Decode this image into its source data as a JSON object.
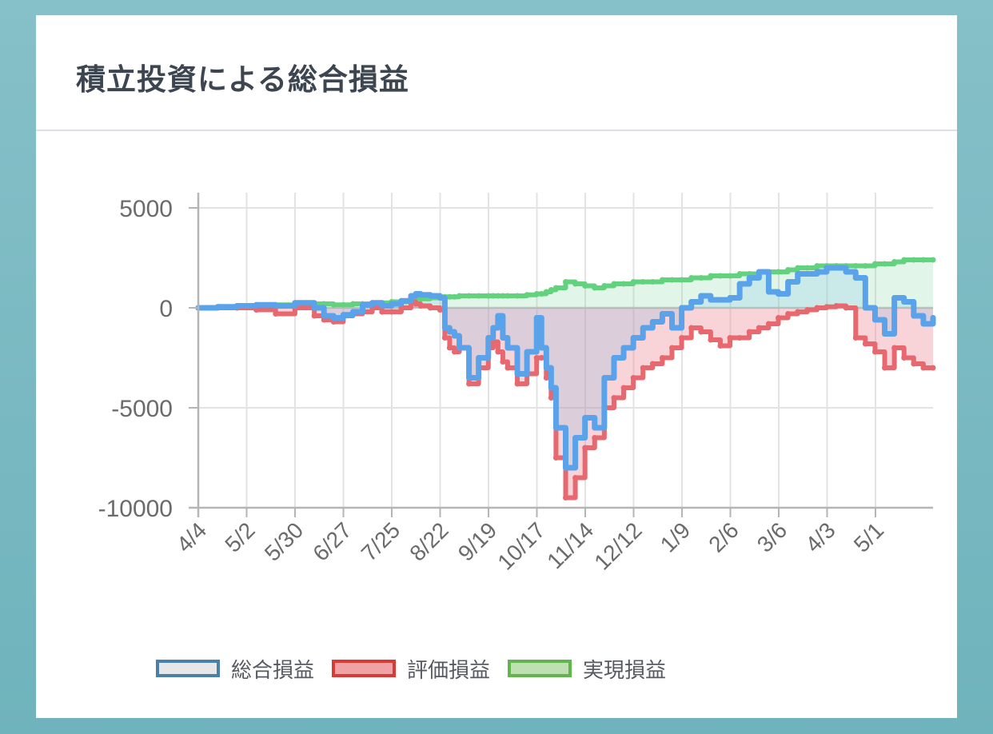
{
  "title": "積立投資による総合損益",
  "colors": {
    "total_line": "#5aa3ea",
    "total_fill": "rgba(120,190,230,0.22)",
    "eval_line": "#e7686f",
    "eval_fill": "rgba(235,130,140,0.35)",
    "real_line": "#62d27e",
    "real_fill": "rgba(120,215,150,0.22)"
  },
  "legend": [
    {
      "label": "総合損益",
      "fill": "#e6e7e9",
      "border": "#4a7fa8"
    },
    {
      "label": "評価損益",
      "fill": "#f0a3a5",
      "border": "#d83a35"
    },
    {
      "label": "実現損益",
      "fill": "#bfe1b2",
      "border": "#62b44f"
    }
  ],
  "chart_data": {
    "type": "line",
    "title": "積立投資による総合損益",
    "xlabel": "",
    "ylabel": "",
    "ylim": [
      -10000,
      5000
    ],
    "yticks": [
      5000,
      0,
      -5000,
      -10000
    ],
    "ytick_labels": [
      "5000",
      "0",
      "-5000",
      "-10000"
    ],
    "xticks": [
      "4/4",
      "5/2",
      "5/30",
      "6/27",
      "7/25",
      "8/22",
      "9/19",
      "10/17",
      "11/14",
      "12/12",
      "1/9",
      "2/6",
      "3/6",
      "4/3",
      "5/1"
    ],
    "x": [
      0,
      4,
      8,
      12,
      16,
      20,
      24,
      26,
      28,
      30,
      32,
      34,
      36,
      38,
      40,
      42,
      44,
      45,
      46,
      48,
      50,
      51,
      52,
      53,
      54,
      56,
      58,
      60,
      61,
      62,
      63,
      64,
      66,
      68,
      70,
      71,
      72,
      73,
      74,
      76,
      78,
      80,
      82,
      84,
      86,
      88,
      90,
      92,
      94,
      96,
      98,
      100,
      102,
      104,
      106,
      108,
      110,
      112,
      114,
      116,
      118,
      120,
      122,
      124,
      126,
      128,
      130,
      132,
      134,
      136,
      138,
      140,
      142,
      144,
      146,
      148,
      150,
      152
    ],
    "series": [
      {
        "name": "総合損益",
        "values": [
          0,
          50,
          100,
          150,
          100,
          250,
          0,
          -400,
          -500,
          -350,
          -200,
          150,
          250,
          100,
          200,
          350,
          600,
          700,
          650,
          600,
          500,
          -1000,
          -1200,
          -1400,
          -2000,
          -3500,
          -2500,
          -1500,
          -1000,
          -400,
          -1500,
          -2000,
          -3300,
          -2200,
          -500,
          -2000,
          -3000,
          -4000,
          -6000,
          -8000,
          -6500,
          -5500,
          -6000,
          -3500,
          -2500,
          -2000,
          -1500,
          -1000,
          -700,
          -300,
          -1000,
          0,
          300,
          600,
          400,
          400,
          500,
          1200,
          1500,
          1800,
          800,
          700,
          1300,
          1700,
          1700,
          1800,
          2000,
          2000,
          1800,
          1500,
          0,
          -600,
          -1300,
          500,
          300,
          -400,
          -800,
          -500
        ]
      },
      {
        "name": "評価損益",
        "values": [
          0,
          0,
          0,
          -100,
          -300,
          0,
          -400,
          -600,
          -700,
          -400,
          -300,
          -200,
          0,
          -200,
          -200,
          0,
          300,
          200,
          100,
          0,
          -100,
          -1500,
          -2000,
          -2200,
          -2000,
          -3800,
          -3000,
          -2000,
          -1700,
          -2200,
          -2700,
          -3000,
          -3800,
          -3300,
          -2500,
          -2500,
          -3500,
          -4500,
          -7500,
          -9500,
          -8500,
          -7000,
          -6500,
          -5000,
          -4500,
          -4000,
          -3500,
          -3000,
          -2800,
          -2500,
          -2000,
          -1500,
          -1000,
          -1200,
          -1600,
          -1900,
          -1500,
          -1500,
          -1200,
          -1000,
          -800,
          -500,
          -300,
          -200,
          -100,
          0,
          50,
          100,
          0,
          -1500,
          -1800,
          -2200,
          -3000,
          -2000,
          -2500,
          -2800,
          -3000,
          -3000
        ]
      },
      {
        "name": "実現損益",
        "values": [
          0,
          0,
          0,
          100,
          150,
          200,
          200,
          200,
          150,
          150,
          200,
          200,
          250,
          250,
          300,
          300,
          400,
          450,
          450,
          500,
          550,
          550,
          550,
          550,
          600,
          600,
          600,
          600,
          600,
          600,
          600,
          600,
          600,
          650,
          700,
          700,
          800,
          900,
          1000,
          1300,
          1200,
          1100,
          1000,
          1100,
          1200,
          1200,
          1300,
          1300,
          1300,
          1400,
          1400,
          1400,
          1500,
          1500,
          1600,
          1600,
          1600,
          1700,
          1700,
          1800,
          1800,
          1800,
          1900,
          2000,
          2000,
          2100,
          2100,
          2100,
          2100,
          2100,
          2100,
          2200,
          2200,
          2300,
          2400,
          2400,
          2400,
          2400
        ]
      }
    ],
    "grid": true,
    "legend_position": "bottom"
  }
}
